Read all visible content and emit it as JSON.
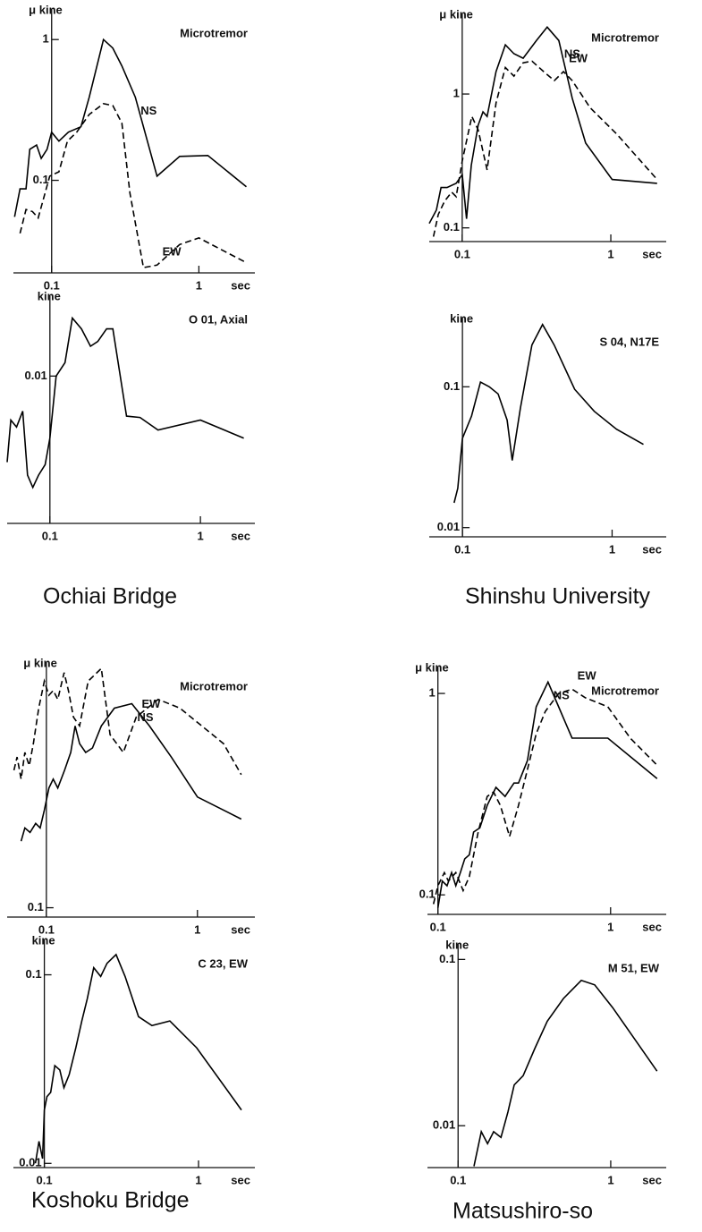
{
  "chart_data": [
    {
      "type": "line",
      "title": "Microtremor",
      "ylabel": "μ kine",
      "xlabel": "sec",
      "xscale": "log",
      "yscale": "log",
      "xlim": [
        0.055,
        2.4
      ],
      "ylim": [
        0.022,
        1.65
      ],
      "xticks": [
        0.1,
        1
      ],
      "yticks": [
        0.1,
        1
      ],
      "series": [
        {
          "name": "NS",
          "color": "#000000",
          "dashed": false,
          "x": [
            0.056,
            0.061,
            0.067,
            0.071,
            0.079,
            0.085,
            0.093,
            0.1,
            0.112,
            0.13,
            0.158,
            0.18,
            0.225,
            0.26,
            0.3,
            0.37,
            0.52,
            0.74,
            1.15,
            2.1
          ],
          "values": [
            0.055,
            0.087,
            0.087,
            0.166,
            0.178,
            0.143,
            0.166,
            0.22,
            0.19,
            0.22,
            0.24,
            0.39,
            1,
            0.87,
            0.65,
            0.39,
            0.107,
            0.148,
            0.15,
            0.09
          ]
        },
        {
          "name": "EW",
          "color": "#000000",
          "dashed": true,
          "x": [
            0.061,
            0.067,
            0.074,
            0.081,
            0.097,
            0.112,
            0.128,
            0.148,
            0.18,
            0.225,
            0.26,
            0.3,
            0.34,
            0.42,
            0.52,
            0.74,
            1,
            1.1,
            2.1
          ],
          "values": [
            0.042,
            0.062,
            0.06,
            0.054,
            0.107,
            0.115,
            0.19,
            0.22,
            0.294,
            0.35,
            0.34,
            0.255,
            0.081,
            0.024,
            0.025,
            0.035,
            0.039,
            0.037,
            0.026
          ]
        }
      ]
    },
    {
      "type": "line",
      "title": "O 01, Axial",
      "ylabel": "kine",
      "xlabel": "sec",
      "xscale": "log",
      "yscale": "log",
      "xlim": [
        0.052,
        2.3
      ],
      "ylim": [
        0.00135,
        0.03
      ],
      "xticks": [
        0.1,
        1
      ],
      "yticks": [
        0.01
      ],
      "series": [
        {
          "color": "#000000",
          "dashed": false,
          "x": [
            0.052,
            0.055,
            0.06,
            0.066,
            0.071,
            0.077,
            0.084,
            0.093,
            0.1,
            0.11,
            0.126,
            0.141,
            0.162,
            0.186,
            0.208,
            0.238,
            0.262,
            0.323,
            0.397,
            0.523,
            1,
            1.94
          ],
          "values": [
            0.0031,
            0.0055,
            0.005,
            0.0062,
            0.0026,
            0.0022,
            0.0026,
            0.003,
            0.0043,
            0.01,
            0.012,
            0.022,
            0.019,
            0.015,
            0.016,
            0.019,
            0.019,
            0.0058,
            0.0057,
            0.0048,
            0.0055,
            0.0043
          ]
        }
      ]
    },
    {
      "type": "line",
      "title": "Microtremor",
      "ylabel": "μ kine",
      "xlabel": "sec",
      "xscale": "log",
      "yscale": "log",
      "xlim": [
        0.06,
        2.36
      ],
      "ylim": [
        0.079,
        4
      ],
      "xticks": [
        0.1,
        1
      ],
      "yticks": [
        0.1,
        1
      ],
      "series": [
        {
          "name": "NS",
          "color": "#000000",
          "dashed": false,
          "x": [
            0.06,
            0.067,
            0.072,
            0.079,
            0.091,
            0.1,
            0.107,
            0.115,
            0.128,
            0.138,
            0.147,
            0.169,
            0.195,
            0.223,
            0.257,
            0.316,
            0.373,
            0.447,
            0.55,
            0.677,
            1.02,
            2.05
          ],
          "values": [
            0.108,
            0.136,
            0.2,
            0.2,
            0.215,
            0.25,
            0.117,
            0.293,
            0.585,
            0.736,
            0.68,
            1.47,
            2.33,
            2,
            1.85,
            2.51,
            3.16,
            2.51,
            0.93,
            0.43,
            0.23,
            0.215
          ]
        },
        {
          "name": "EW",
          "color": "#000000",
          "dashed": true,
          "x": [
            0.064,
            0.069,
            0.076,
            0.085,
            0.091,
            0.1,
            0.116,
            0.128,
            0.147,
            0.169,
            0.195,
            0.223,
            0.257,
            0.295,
            0.353,
            0.417,
            0.48,
            0.55,
            0.726,
            1.1,
            2.05
          ],
          "values": [
            0.086,
            0.126,
            0.158,
            0.185,
            0.171,
            0.316,
            0.68,
            0.54,
            0.271,
            0.858,
            1.58,
            1.36,
            1.71,
            1.76,
            1.47,
            1.26,
            1.47,
            1.26,
            0.79,
            0.5,
            0.23
          ]
        }
      ]
    },
    {
      "type": "line",
      "title": "S 04, N17E",
      "ylabel": "kine",
      "xlabel": "sec",
      "xscale": "log",
      "yscale": "log",
      "xlim": [
        0.06,
        2.3
      ],
      "ylim": [
        0.0086,
        0.31
      ],
      "xticks": [
        0.1,
        1
      ],
      "yticks": [
        0.01,
        0.1
      ],
      "series": [
        {
          "color": "#000000",
          "dashed": false,
          "x": [
            0.088,
            0.093,
            0.1,
            0.115,
            0.132,
            0.151,
            0.173,
            0.199,
            0.215,
            0.244,
            0.291,
            0.343,
            0.41,
            0.562,
            0.76,
            1.07,
            1.62
          ],
          "values": [
            0.015,
            0.019,
            0.043,
            0.062,
            0.108,
            0.1,
            0.089,
            0.058,
            0.03,
            0.071,
            0.198,
            0.277,
            0.198,
            0.096,
            0.067,
            0.05,
            0.039
          ]
        }
      ]
    },
    {
      "type": "line",
      "title": "Microtremor",
      "ylabel": "μ kine",
      "xlabel": "sec",
      "xscale": "log",
      "yscale": "log",
      "xlim": [
        0.055,
        2.4
      ],
      "ylim": [
        0.09,
        1.6
      ],
      "xticks": [
        0.1,
        1
      ],
      "yticks": [
        0.1
      ],
      "series": [
        {
          "name": "NS",
          "color": "#000000",
          "dashed": false,
          "x": [
            0.068,
            0.072,
            0.078,
            0.085,
            0.091,
            0.097,
            0.104,
            0.111,
            0.119,
            0.132,
            0.145,
            0.155,
            0.166,
            0.182,
            0.202,
            0.231,
            0.282,
            0.368,
            0.481,
            0.671,
            1,
            1.95
          ],
          "values": [
            0.212,
            0.246,
            0.234,
            0.259,
            0.246,
            0.301,
            0.386,
            0.427,
            0.386,
            0.472,
            0.577,
            0.778,
            0.637,
            0.577,
            0.607,
            0.778,
            0.951,
            1,
            0.778,
            0.548,
            0.349,
            0.272
          ]
        },
        {
          "name": "EW",
          "color": "#000000",
          "dashed": true,
          "x": [
            0.061,
            0.064,
            0.068,
            0.072,
            0.077,
            0.082,
            0.089,
            0.097,
            0.104,
            0.111,
            0.119,
            0.131,
            0.14,
            0.151,
            0.166,
            0.189,
            0.231,
            0.264,
            0.323,
            0.394,
            0.55,
            0.766,
            1.07,
            1.49,
            1.95
          ],
          "values": [
            0.472,
            0.548,
            0.427,
            0.577,
            0.497,
            0.637,
            0.951,
            1.29,
            1.1,
            1.16,
            1.05,
            1.42,
            1.16,
            0.861,
            0.778,
            1.29,
            1.49,
            0.705,
            0.577,
            0.861,
            1.05,
            0.951,
            0.778,
            0.637,
            0.449
          ]
        }
      ]
    },
    {
      "type": "line",
      "title": "C 23, EW",
      "ylabel": "kine",
      "xlabel": "sec",
      "xscale": "log",
      "yscale": "log",
      "xlim": [
        0.063,
        2.32
      ],
      "ylim": [
        0.0095,
        0.154
      ],
      "xticks": [
        0.1,
        1
      ],
      "yticks": [
        0.01,
        0.1
      ],
      "series": [
        {
          "color": "#000000",
          "dashed": false,
          "x": [
            0.0875,
            0.0923,
            0.0974,
            0.1,
            0.104,
            0.11,
            0.117,
            0.126,
            0.134,
            0.145,
            0.16,
            0.175,
            0.19,
            0.209,
            0.232,
            0.255,
            0.292,
            0.334,
            0.408,
            0.499,
            0.651,
            0.973,
            1.9
          ],
          "values": [
            0.01,
            0.0131,
            0.0106,
            0.0192,
            0.0226,
            0.0238,
            0.033,
            0.0313,
            0.0252,
            0.0296,
            0.041,
            0.0569,
            0.0746,
            0.109,
            0.098,
            0.115,
            0.128,
            0.098,
            0.06,
            0.0538,
            0.0569,
            0.041,
            0.0192
          ]
        }
      ]
    },
    {
      "type": "line",
      "title": "Microtremor",
      "ylabel": "μ kine",
      "xlabel": "sec",
      "xscale": "log",
      "yscale": "log",
      "xlim": [
        0.087,
        2.1
      ],
      "ylim": [
        0.08,
        1.36
      ],
      "xticks": [
        0.1,
        1
      ],
      "yticks": [
        0.1,
        1
      ],
      "series": [
        {
          "name": "NS",
          "color": "#000000",
          "dashed": false,
          "x": [
            0.1,
            0.106,
            0.113,
            0.12,
            0.127,
            0.135,
            0.143,
            0.152,
            0.161,
            0.175,
            0.193,
            0.217,
            0.245,
            0.276,
            0.293,
            0.33,
            0.371,
            0.434,
            0.5,
            0.598,
            0.716,
            0.964,
            1.86
          ],
          "values": [
            0.086,
            0.117,
            0.111,
            0.129,
            0.111,
            0.129,
            0.151,
            0.158,
            0.205,
            0.215,
            0.278,
            0.342,
            0.308,
            0.359,
            0.359,
            0.464,
            0.858,
            1.14,
            0.858,
            0.6,
            0.6,
            0.6,
            0.378
          ]
        },
        {
          "name": "EW",
          "color": "#000000",
          "dashed": true,
          "x": [
            0.0942,
            0.1,
            0.109,
            0.115,
            0.127,
            0.14,
            0.152,
            0.171,
            0.193,
            0.21,
            0.23,
            0.26,
            0.293,
            0.33,
            0.371,
            0.419,
            0.5,
            0.598,
            0.716,
            0.964,
            1.3,
            1.86
          ],
          "values": [
            0.09,
            0.111,
            0.129,
            0.117,
            0.129,
            0.105,
            0.123,
            0.205,
            0.308,
            0.324,
            0.278,
            0.195,
            0.278,
            0.419,
            0.631,
            0.815,
            1,
            1.05,
            0.951,
            0.858,
            0.6,
            0.44
          ]
        }
      ]
    },
    {
      "type": "line",
      "title": "M 51, EW",
      "ylabel": "kine",
      "xlabel": "sec",
      "xscale": "log",
      "yscale": "log",
      "xlim": [
        0.063,
        2.31
      ],
      "ylim": [
        0.0056,
        0.124
      ],
      "xticks": [
        0.1,
        1
      ],
      "yticks": [
        0.01,
        0.1
      ],
      "series": [
        {
          "color": "#000000",
          "dashed": false,
          "x": [
            0.127,
            0.142,
            0.156,
            0.171,
            0.191,
            0.212,
            0.233,
            0.267,
            0.318,
            0.384,
            0.49,
            0.641,
            0.785,
            1.03,
            1.44,
            2.01
          ],
          "values": [
            0.0057,
            0.0092,
            0.0078,
            0.0092,
            0.0085,
            0.0121,
            0.0176,
            0.02,
            0.0291,
            0.0425,
            0.0582,
            0.0748,
            0.0703,
            0.0513,
            0.033,
            0.0213
          ]
        }
      ]
    }
  ],
  "captions": [
    "Ochiai Bridge",
    "Shinshu University",
    "Koshoku Bridge",
    "Matsushiro-so"
  ]
}
